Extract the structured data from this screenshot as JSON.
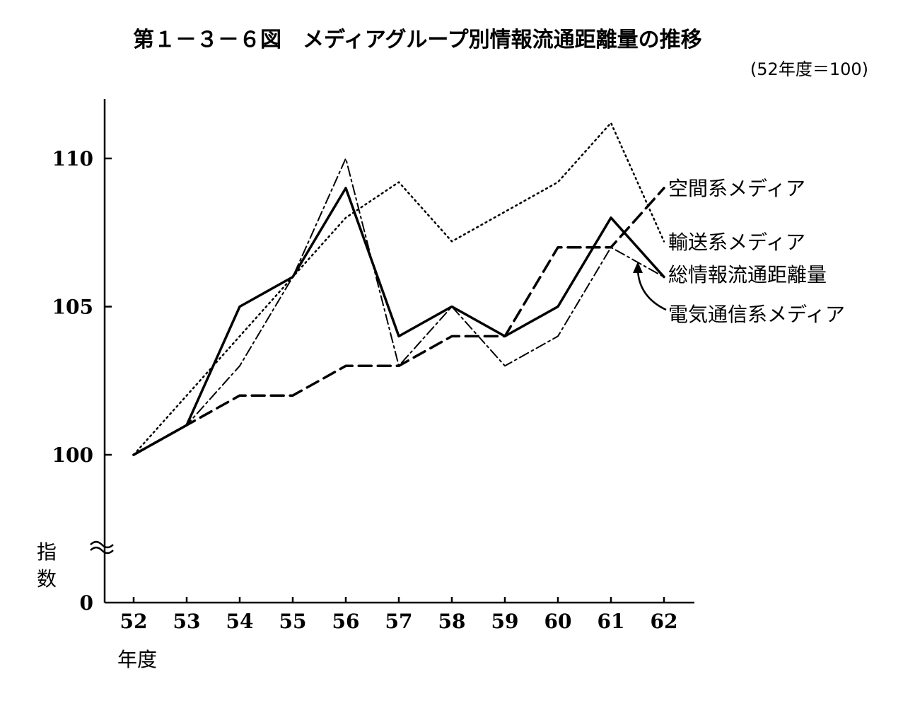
{
  "chart_data": {
    "type": "line",
    "title": "第１－３－６図　メディアグループ別情報流通距離量の推移",
    "subtitle": "(52年度＝100)",
    "xlabel": "年度",
    "ylabel": "指数",
    "x": [
      "52",
      "53",
      "54",
      "55",
      "56",
      "57",
      "58",
      "59",
      "60",
      "61",
      "62"
    ],
    "yticks": [
      "0",
      "100",
      "105",
      "110"
    ],
    "ylim": [
      100,
      111.5
    ],
    "axis_break": true,
    "grid": false,
    "legend": "direct-labels-right",
    "series": [
      {
        "name": "空間系メディア",
        "style": "dashed-bold",
        "values": [
          100,
          101,
          102,
          102,
          103,
          103,
          104,
          104,
          107,
          107,
          109
        ]
      },
      {
        "name": "輸送系メディア",
        "style": "dotted",
        "values": [
          100,
          102,
          104,
          106,
          108,
          109.2,
          107.2,
          108.2,
          109.2,
          111.2,
          107.2
        ]
      },
      {
        "name": "総情報流通距離量",
        "style": "solid-bold",
        "values": [
          100,
          101,
          105,
          106,
          109,
          104,
          105,
          104,
          105,
          108,
          106
        ]
      },
      {
        "name": "電気通信系メディア",
        "style": "dash-dot",
        "values": [
          100,
          101,
          103,
          106,
          110,
          103,
          105,
          103,
          104,
          107,
          106
        ]
      }
    ]
  }
}
